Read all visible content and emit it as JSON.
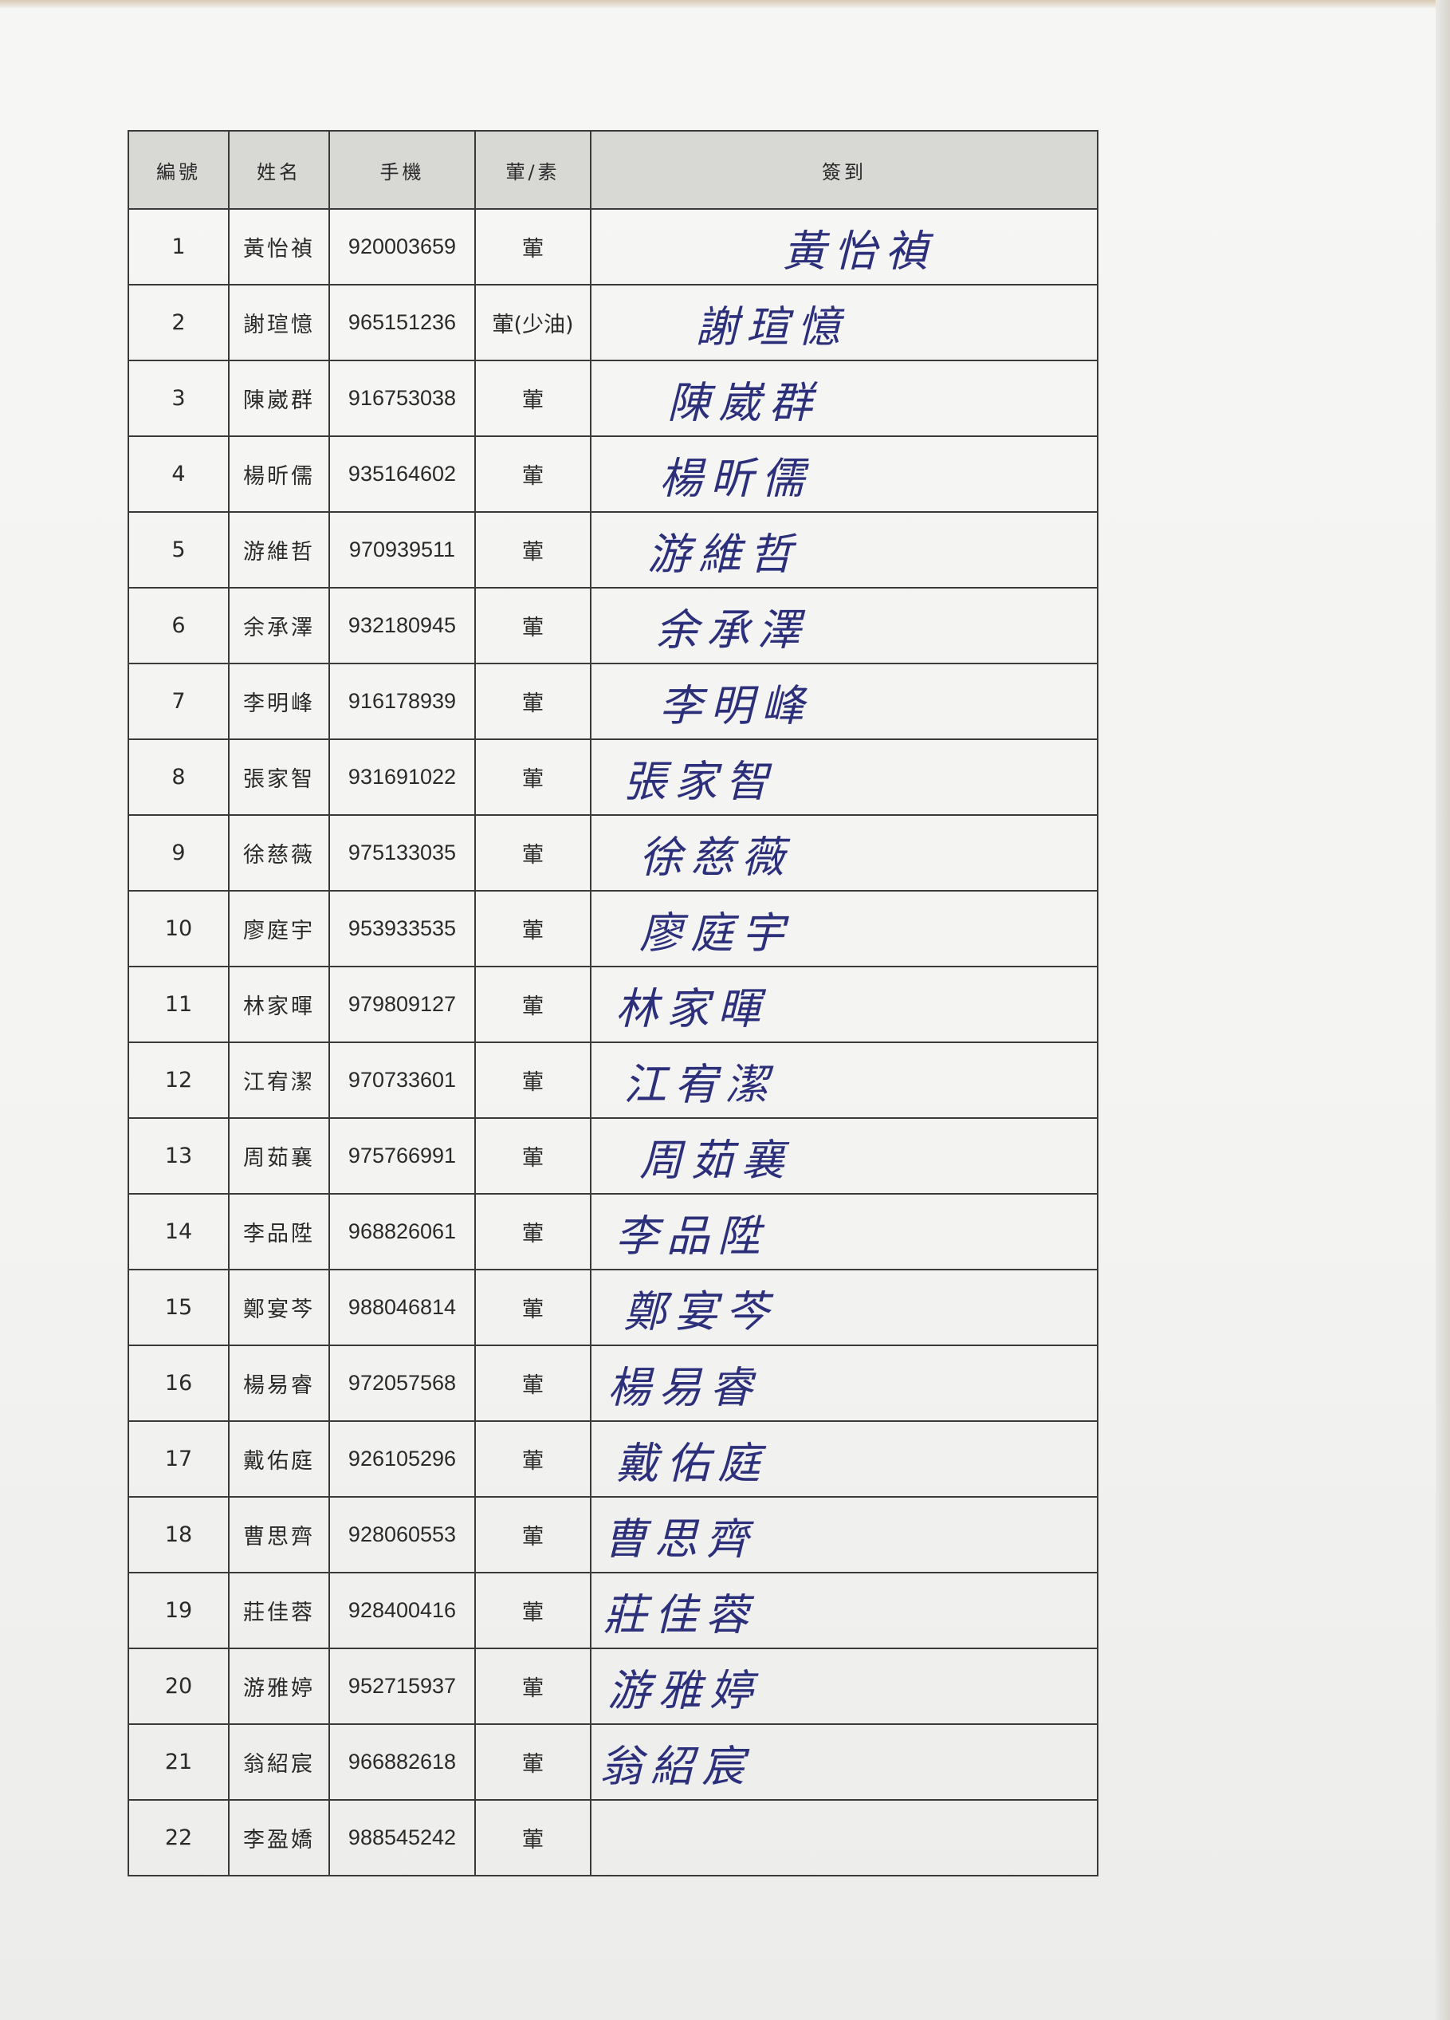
{
  "headers": {
    "no": "編號",
    "name": "姓名",
    "phone": "手機",
    "diet": "葷/素",
    "sign": "簽到"
  },
  "rows": [
    {
      "no": "1",
      "name": "黃怡禎",
      "phone": "920003659",
      "diet": "葷",
      "signed": true
    },
    {
      "no": "2",
      "name": "謝瑄憶",
      "phone": "965151236",
      "diet": "葷(少油)",
      "signed": true
    },
    {
      "no": "3",
      "name": "陳崴群",
      "phone": "916753038",
      "diet": "葷",
      "signed": true
    },
    {
      "no": "4",
      "name": "楊昕儒",
      "phone": "935164602",
      "diet": "葷",
      "signed": true
    },
    {
      "no": "5",
      "name": "游維哲",
      "phone": "970939511",
      "diet": "葷",
      "signed": true
    },
    {
      "no": "6",
      "name": "余承澤",
      "phone": "932180945",
      "diet": "葷",
      "signed": true
    },
    {
      "no": "7",
      "name": "李明峰",
      "phone": "916178939",
      "diet": "葷",
      "signed": true
    },
    {
      "no": "8",
      "name": "張家智",
      "phone": "931691022",
      "diet": "葷",
      "signed": true
    },
    {
      "no": "9",
      "name": "徐慈薇",
      "phone": "975133035",
      "diet": "葷",
      "signed": true
    },
    {
      "no": "10",
      "name": "廖庭宇",
      "phone": "953933535",
      "diet": "葷",
      "signed": true
    },
    {
      "no": "11",
      "name": "林家暉",
      "phone": "979809127",
      "diet": "葷",
      "signed": true
    },
    {
      "no": "12",
      "name": "江宥潔",
      "phone": "970733601",
      "diet": "葷",
      "signed": true
    },
    {
      "no": "13",
      "name": "周茹襄",
      "phone": "975766991",
      "diet": "葷",
      "signed": true
    },
    {
      "no": "14",
      "name": "李品陞",
      "phone": "968826061",
      "diet": "葷",
      "signed": true
    },
    {
      "no": "15",
      "name": "鄭宴芩",
      "phone": "988046814",
      "diet": "葷",
      "signed": true
    },
    {
      "no": "16",
      "name": "楊易睿",
      "phone": "972057568",
      "diet": "葷",
      "signed": true
    },
    {
      "no": "17",
      "name": "戴佑庭",
      "phone": "926105296",
      "diet": "葷",
      "signed": true
    },
    {
      "no": "18",
      "name": "曹思齊",
      "phone": "928060553",
      "diet": "葷",
      "signed": true
    },
    {
      "no": "19",
      "name": "莊佳蓉",
      "phone": "928400416",
      "diet": "葷",
      "signed": true
    },
    {
      "no": "20",
      "name": "游雅婷",
      "phone": "952715937",
      "diet": "葷",
      "signed": true
    },
    {
      "no": "21",
      "name": "翁紹宸",
      "phone": "966882618",
      "diet": "葷",
      "signed": true
    },
    {
      "no": "22",
      "name": "李盈嬌",
      "phone": "988545242",
      "diet": "葷",
      "signed": false
    }
  ],
  "signatures": [
    "黃怡禎",
    "謝瑄憶",
    "陳崴群",
    "楊昕儒",
    "游維哲",
    "余承澤",
    "李明峰",
    "張家智",
    "徐慈薇",
    "廖庭宇",
    "林家暉",
    "江宥潔",
    "周茹襄",
    "李品陞",
    "鄭宴芩",
    "楊易睿",
    "戴佑庭",
    "曹思齊",
    "莊佳蓉",
    "游雅婷",
    "翁紹宸",
    ""
  ],
  "colors": {
    "ink": "#2c2f7a",
    "header_bg": "#d8d8d5",
    "grid": "#3a3a3a"
  }
}
